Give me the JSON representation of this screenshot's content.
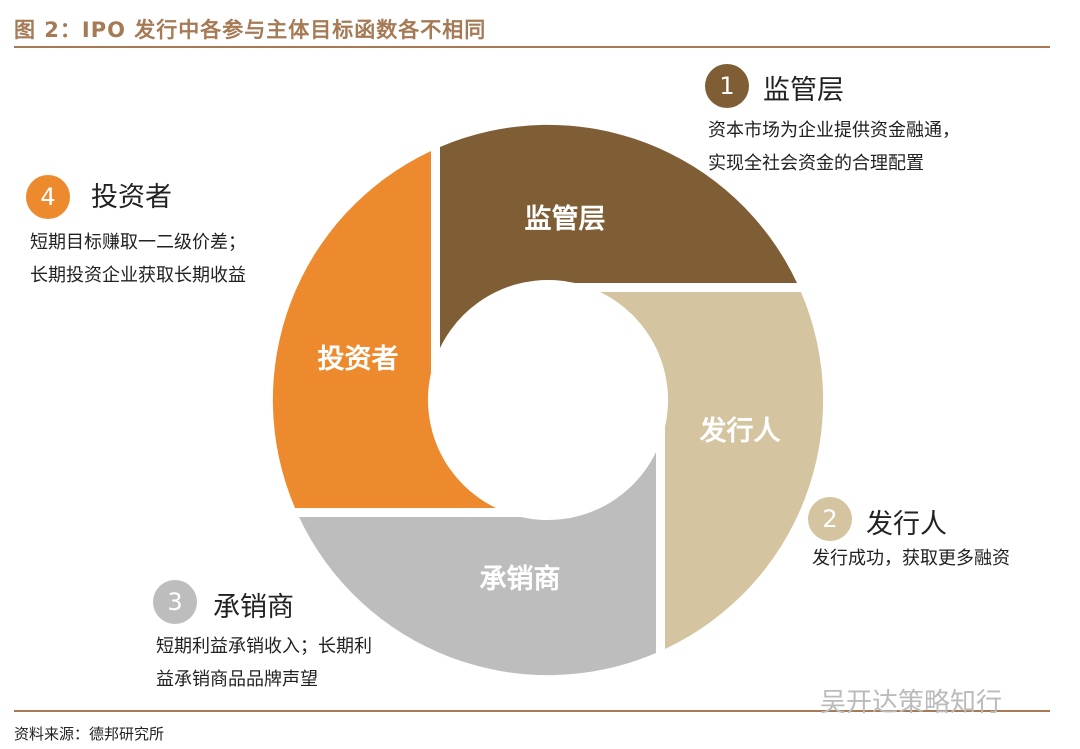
{
  "title": "图 2：IPO 发行中各参与主体目标函数各不相同",
  "source": "资料来源：德邦研究所",
  "watermark": "吴开达策略知行",
  "colors": {
    "regulator": "#7f5e35",
    "issuer": "#d4c4a0",
    "underwriter": "#bdbdbd",
    "investor": "#ed8a2e"
  },
  "segments": [
    {
      "num": "1",
      "label": "监管层",
      "heading": "监管层",
      "desc": [
        "资本市场为企业提供资金融通，",
        "实现全社会资金的合理配置"
      ]
    },
    {
      "num": "2",
      "label": "发行人",
      "heading": "发行人",
      "desc": [
        "发行成功，获取更多融资"
      ]
    },
    {
      "num": "3",
      "label": "承销商",
      "heading": "承销商",
      "desc": [
        "短期利益承销收入；长期利",
        "益承销商品品牌声望"
      ]
    },
    {
      "num": "4",
      "label": "投资者",
      "heading": "投资者",
      "desc": [
        "短期目标赚取一二级价差；",
        "长期投资企业获取长期收益"
      ]
    }
  ]
}
